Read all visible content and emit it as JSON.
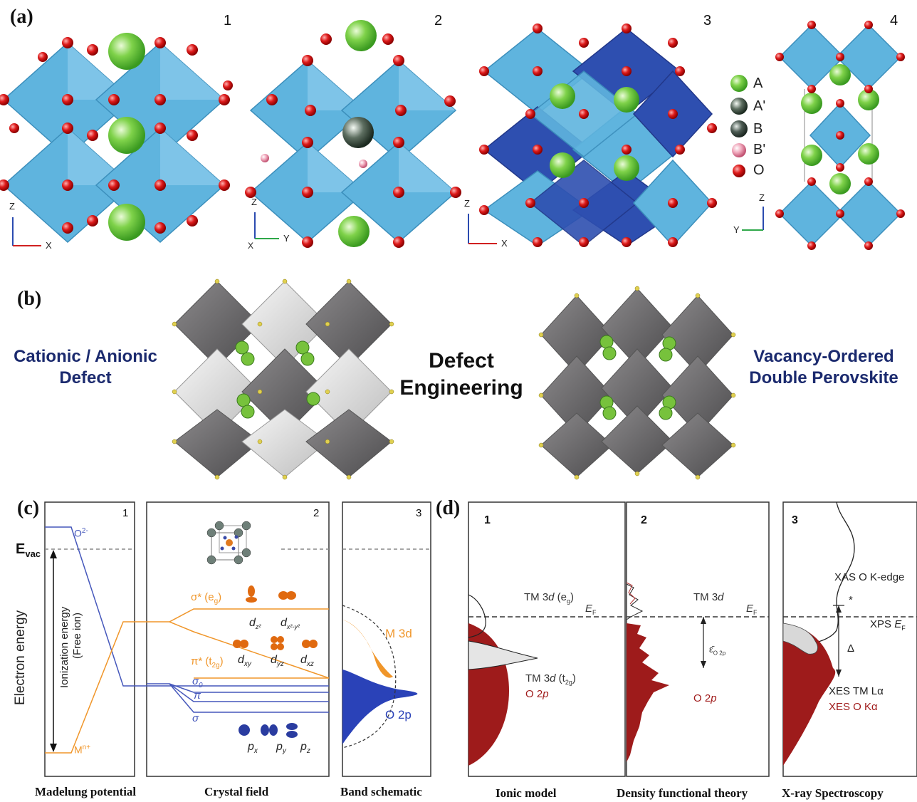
{
  "panel_a": {
    "letter": "(a)",
    "subpanels": [
      "1",
      "2",
      "3",
      "4"
    ],
    "axes_1": {
      "vertical": "Z",
      "horizontal": "X"
    },
    "axes_2": {
      "vertical": "Z",
      "horizontal": "Y",
      "out": "X"
    },
    "axes_3": {
      "vertical": "Z",
      "horizontal": "X"
    },
    "axes_4": {
      "vertical": "Z",
      "horizontal": "Y"
    },
    "legend": [
      {
        "label": "A",
        "color": "#5cc43a"
      },
      {
        "label": "A'",
        "color": "#4a5a50"
      },
      {
        "label": "B",
        "color": "#2f3d35"
      },
      {
        "label": "B'",
        "color": "#e8a0b0"
      },
      {
        "label": "O",
        "color": "#d11a1a"
      }
    ],
    "colors": {
      "octahedron": "#5fb4de",
      "octahedron_dark": "#2e4fb0",
      "oxygen": "#d11a1a",
      "a_site": "#6cc93e"
    }
  },
  "panel_b": {
    "letter": "(b)",
    "left_text": [
      "Cationic / Anionic",
      "Defect"
    ],
    "center_text": [
      "Defect",
      "Engineering"
    ],
    "right_text": [
      "Vacancy-Ordered",
      "Double Perovskite"
    ]
  },
  "panel_c": {
    "letter": "(c)",
    "evac": "E",
    "evac_sub": "vac",
    "y_axis": "Electron energy",
    "ion_label_1": "Ionization energy",
    "ion_label_2": "(Free ion)",
    "o_label": "O",
    "o_sup": "2-",
    "m_label": "M",
    "m_sup": "n+",
    "sub_numbers": [
      "1",
      "2",
      "3"
    ],
    "sigma_star": "σ* (e",
    "sigma_star_sub": "g",
    "pi_star": "π* (t",
    "pi_star_sub": "2g",
    "sigma0": "σ",
    "sigma0_sub": "0",
    "pi": "π",
    "sigma": "σ",
    "d_orbitals_top": [
      {
        "main": "d",
        "sub": "z²"
      },
      {
        "main": "d",
        "sub": "x²-y²"
      }
    ],
    "d_orbitals_bottom": [
      {
        "main": "d",
        "sub": "xy"
      },
      {
        "main": "d",
        "sub": "yz"
      },
      {
        "main": "d",
        "sub": "xz"
      }
    ],
    "p_orbitals": [
      {
        "main": "p",
        "sub": "x"
      },
      {
        "main": "p",
        "sub": "y"
      },
      {
        "main": "p",
        "sub": "z"
      }
    ],
    "band_m": "M 3d",
    "band_o": "O 2p",
    "captions": [
      "Madelung potential",
      "Crystal field",
      "Band schematic"
    ]
  },
  "panel_d": {
    "letter": "(d)",
    "sub_numbers": [
      "1",
      "2",
      "3"
    ],
    "ionic": {
      "eg": "TM 3",
      "eg_i": "d",
      "eg_paren": " (e",
      "eg_sub": "g",
      "t2g": "TM 3",
      "t2g_i": "d",
      "t2g_paren": " (t",
      "t2g_sub": "2g",
      "o2p": "O 2",
      "o2p_i": "p",
      "ef": "E",
      "ef_sub": "F"
    },
    "dft": {
      "tm": "TM 3",
      "tm_i": "d",
      "o2p": "O 2",
      "o2p_i": "p",
      "ef": "E",
      "ef_sub": "F",
      "eps": "ε̄",
      "eps_sub": "O 2p"
    },
    "xray": {
      "xas": "XAS O K-edge",
      "xps": "XPS ",
      "xps_e": "E",
      "xps_sub": "F",
      "star": "*",
      "delta": "Δ",
      "xes_tm": "XES TM Lα",
      "xes_o": "XES O Kα"
    },
    "captions": [
      "Ionic model",
      "Density functional theory",
      "X-ray Spectroscopy"
    ]
  }
}
